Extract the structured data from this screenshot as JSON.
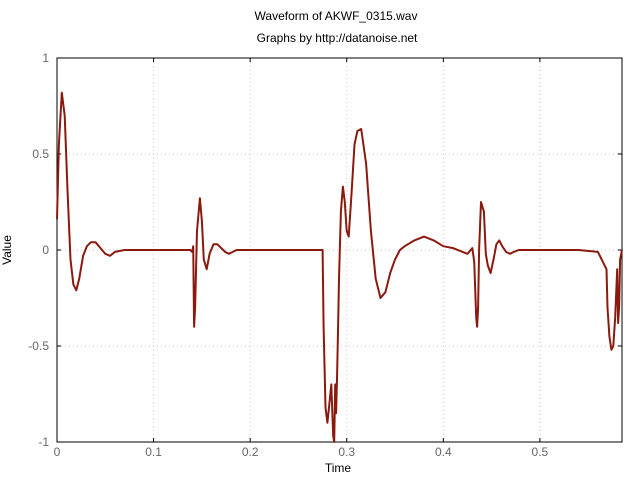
{
  "chart_data": {
    "type": "line",
    "title": "Waveform of AKWF_0315.wav",
    "subtitle": "Graphs by http://datanoise.net",
    "xlabel": "Time",
    "ylabel": "Value",
    "xlim": [
      0,
      0.585
    ],
    "ylim": [
      -1,
      1
    ],
    "x_ticks": [
      0,
      0.1,
      0.2,
      0.3,
      0.4,
      0.5
    ],
    "x_tick_labels": [
      "0",
      "0.1",
      "0.2",
      "0.3",
      "0.4",
      "0.5"
    ],
    "y_ticks": [
      -1,
      -0.5,
      0,
      0.5,
      1
    ],
    "y_tick_labels": [
      "-1",
      "-0.5",
      "0",
      "0.5",
      "1"
    ],
    "grid": true,
    "line_color": "#8b1a0e",
    "series": [
      {
        "x": [
          0.0,
          0.002,
          0.005,
          0.008,
          0.011,
          0.014,
          0.017,
          0.02,
          0.023,
          0.027,
          0.031,
          0.035,
          0.04,
          0.045,
          0.05,
          0.055,
          0.06,
          0.07,
          0.08,
          0.1,
          0.12,
          0.13,
          0.138,
          0.14,
          0.141,
          0.142,
          0.143,
          0.145,
          0.148,
          0.15,
          0.152,
          0.155,
          0.158,
          0.162,
          0.166,
          0.17,
          0.174,
          0.178,
          0.182,
          0.186,
          0.19,
          0.2,
          0.22,
          0.24,
          0.26,
          0.275,
          0.276,
          0.278,
          0.28,
          0.282,
          0.284,
          0.286,
          0.287,
          0.288,
          0.289,
          0.29,
          0.291,
          0.292,
          0.294,
          0.296,
          0.298,
          0.3,
          0.302,
          0.305,
          0.308,
          0.311,
          0.315,
          0.32,
          0.325,
          0.33,
          0.335,
          0.34,
          0.345,
          0.35,
          0.355,
          0.36,
          0.37,
          0.38,
          0.39,
          0.4,
          0.41,
          0.42,
          0.425,
          0.43,
          0.432,
          0.434,
          0.435,
          0.436,
          0.437,
          0.439,
          0.442,
          0.444,
          0.446,
          0.449,
          0.452,
          0.455,
          0.458,
          0.461,
          0.465,
          0.469,
          0.473,
          0.478,
          0.485,
          0.5,
          0.52,
          0.54,
          0.56,
          0.569,
          0.57,
          0.572,
          0.574,
          0.576,
          0.578,
          0.58,
          0.581,
          0.582,
          0.583,
          0.585
        ],
        "y": [
          0.16,
          0.55,
          0.82,
          0.7,
          0.3,
          -0.05,
          -0.18,
          -0.21,
          -0.15,
          -0.03,
          0.02,
          0.04,
          0.04,
          0.01,
          -0.02,
          -0.03,
          -0.01,
          0.0,
          0.0,
          0.0,
          0.0,
          0.0,
          0.0,
          -0.01,
          0.02,
          -0.4,
          -0.3,
          0.1,
          0.27,
          0.15,
          -0.05,
          -0.1,
          -0.02,
          0.03,
          0.03,
          0.01,
          -0.01,
          -0.02,
          -0.01,
          0.0,
          0.0,
          0.0,
          0.0,
          0.0,
          0.0,
          0.0,
          -0.4,
          -0.82,
          -0.9,
          -0.8,
          -0.7,
          -0.97,
          -1.0,
          -0.7,
          -0.85,
          -0.65,
          -0.4,
          -0.15,
          0.2,
          0.33,
          0.25,
          0.1,
          0.07,
          0.3,
          0.55,
          0.62,
          0.63,
          0.45,
          0.1,
          -0.15,
          -0.25,
          -0.22,
          -0.12,
          -0.05,
          0.0,
          0.02,
          0.05,
          0.07,
          0.05,
          0.02,
          0.01,
          -0.01,
          -0.02,
          0.01,
          -0.06,
          -0.35,
          -0.4,
          -0.3,
          0.0,
          0.25,
          0.2,
          -0.02,
          -0.08,
          -0.12,
          -0.05,
          0.03,
          0.05,
          0.02,
          -0.01,
          -0.02,
          -0.01,
          0.0,
          0.0,
          0.0,
          0.0,
          0.0,
          -0.01,
          -0.1,
          -0.3,
          -0.45,
          -0.52,
          -0.5,
          -0.35,
          -0.1,
          -0.38,
          -0.3,
          -0.05,
          0.0
        ]
      }
    ]
  }
}
